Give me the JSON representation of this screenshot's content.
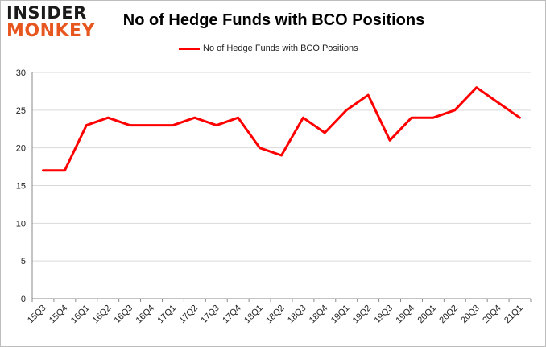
{
  "logo": {
    "line1": "INSIDER",
    "line2": "MONKEY"
  },
  "chart_data": {
    "type": "line",
    "title": "No of Hedge Funds with BCO Positions",
    "xlabel": "",
    "ylabel": "",
    "categories": [
      "15Q3",
      "15Q4",
      "16Q1",
      "16Q2",
      "16Q3",
      "16Q4",
      "17Q1",
      "17Q2",
      "17Q3",
      "17Q4",
      "18Q1",
      "18Q2",
      "18Q3",
      "18Q4",
      "19Q1",
      "19Q2",
      "19Q3",
      "19Q4",
      "20Q1",
      "20Q2",
      "20Q3",
      "20Q4",
      "21Q1"
    ],
    "series": [
      {
        "name": "No of Hedge Funds with BCO Positions",
        "color": "#ff0000",
        "values": [
          17,
          17,
          23,
          24,
          23,
          23,
          23,
          24,
          23,
          24,
          20,
          19,
          24,
          22,
          25,
          27,
          21,
          24,
          24,
          25,
          28,
          26,
          24
        ]
      }
    ],
    "ylim": [
      0,
      30
    ],
    "yticks": [
      0,
      5,
      10,
      15,
      20,
      25,
      30
    ],
    "grid": true,
    "legend": "top-center"
  }
}
